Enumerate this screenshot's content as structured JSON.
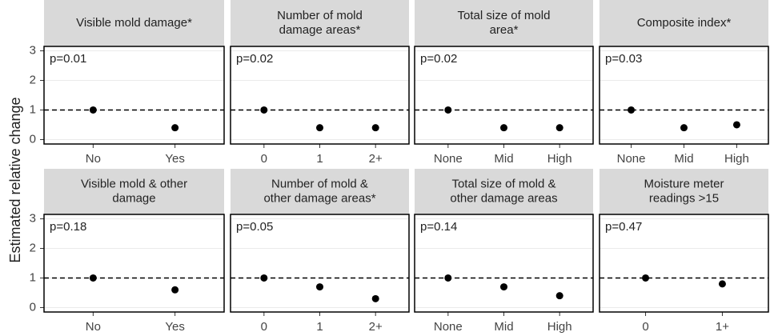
{
  "chart_data": [
    {
      "type": "dot",
      "title_lines": [
        "Visible mold damage*"
      ],
      "annotation": "p=0.01",
      "ylabel": "Estimated relative change",
      "categories": [
        "No",
        "Yes"
      ],
      "values": [
        1,
        0.4
      ],
      "color": "#000000",
      "ylim": [
        -0.15,
        3.15
      ],
      "yticks": [
        0,
        1,
        2,
        3
      ],
      "hline": 1,
      "grid": true
    },
    {
      "type": "dot",
      "title_lines": [
        "Number of mold",
        "damage areas*"
      ],
      "annotation": "p=0.02",
      "categories": [
        "0",
        "1",
        "2+"
      ],
      "values": [
        1,
        0.4,
        0.4
      ],
      "color": "#000000",
      "ylim": [
        -0.15,
        3.15
      ],
      "yticks": [
        0,
        1,
        2,
        3
      ],
      "hline": 1,
      "grid": true
    },
    {
      "type": "dot",
      "title_lines": [
        "Total size of mold",
        "area*"
      ],
      "annotation": "p=0.02",
      "categories": [
        "None",
        "Mid",
        "High"
      ],
      "values": [
        1,
        0.4,
        0.4
      ],
      "color": "#000000",
      "ylim": [
        -0.15,
        3.15
      ],
      "yticks": [
        0,
        1,
        2,
        3
      ],
      "hline": 1,
      "grid": true
    },
    {
      "type": "dot",
      "title_lines": [
        "Composite index*"
      ],
      "annotation": "p=0.03",
      "categories": [
        "None",
        "Mid",
        "High"
      ],
      "values": [
        1,
        0.4,
        0.5
      ],
      "color": "#000000",
      "ylim": [
        -0.15,
        3.15
      ],
      "yticks": [
        0,
        1,
        2,
        3
      ],
      "hline": 1,
      "grid": true
    },
    {
      "type": "dot",
      "title_lines": [
        "Visible mold & other",
        "damage"
      ],
      "annotation": "p=0.18",
      "categories": [
        "No",
        "Yes"
      ],
      "values": [
        1,
        0.6
      ],
      "color": "#000000",
      "ylim": [
        -0.15,
        3.15
      ],
      "yticks": [
        0,
        1,
        2,
        3
      ],
      "hline": 1,
      "grid": true
    },
    {
      "type": "dot",
      "title_lines": [
        "Number of mold &",
        "other damage areas*"
      ],
      "annotation": "p=0.05",
      "categories": [
        "0",
        "1",
        "2+"
      ],
      "values": [
        1,
        0.7,
        0.3
      ],
      "color": "#000000",
      "ylim": [
        -0.15,
        3.15
      ],
      "yticks": [
        0,
        1,
        2,
        3
      ],
      "hline": 1,
      "grid": true
    },
    {
      "type": "dot",
      "title_lines": [
        "Total size of mold &",
        "other damage areas"
      ],
      "annotation": "p=0.14",
      "categories": [
        "None",
        "Mid",
        "High"
      ],
      "values": [
        1,
        0.7,
        0.4
      ],
      "color": "#000000",
      "ylim": [
        -0.15,
        3.15
      ],
      "yticks": [
        0,
        1,
        2,
        3
      ],
      "hline": 1,
      "grid": true
    },
    {
      "type": "dot",
      "title_lines": [
        "Moisture meter",
        "readings >15"
      ],
      "annotation": "p=0.47",
      "categories": [
        "0",
        "1+"
      ],
      "values": [
        1,
        0.8
      ],
      "color": "#000000",
      "ylim": [
        -0.15,
        3.15
      ],
      "yticks": [
        0,
        1,
        2,
        3
      ],
      "hline": 1,
      "grid": true
    }
  ]
}
